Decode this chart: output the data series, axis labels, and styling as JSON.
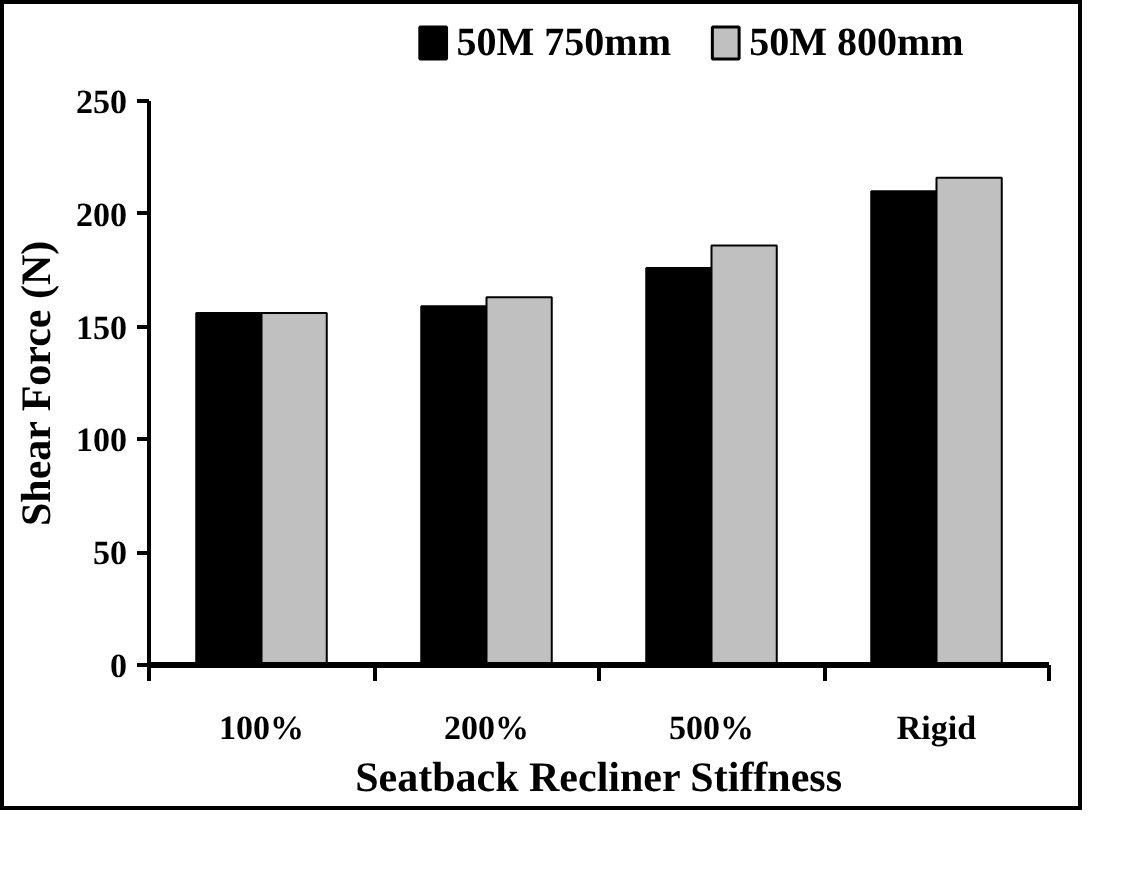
{
  "chart_data": {
    "type": "bar",
    "xlabel": "Seatback Recliner Stiffness",
    "ylabel": "Shear Force (N)",
    "categories": [
      "100%",
      "200%",
      "500%",
      "Rigid"
    ],
    "series": [
      {
        "name": "50M 750mm",
        "color": "#000000",
        "values": [
          156,
          159,
          176,
          210
        ]
      },
      {
        "name": "50M 800mm",
        "color": "#c0c0c0",
        "values": [
          156,
          163,
          186,
          216
        ]
      }
    ],
    "ylim": [
      0,
      250
    ],
    "yticks": [
      0,
      50,
      100,
      150,
      200,
      250
    ],
    "grid": false,
    "legend": "top"
  }
}
